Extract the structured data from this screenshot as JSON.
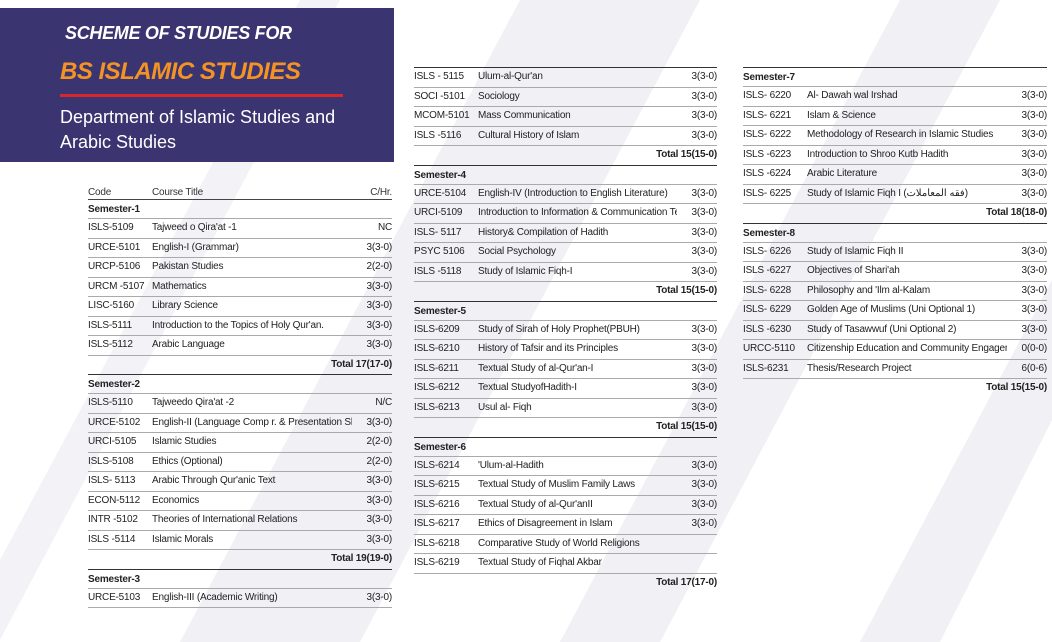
{
  "header": {
    "line1": "SCHEME OF STUDIES FOR",
    "line2": "BS ISLAMIC STUDIES",
    "line3": "Department of Islamic Studies and Arabic Studies"
  },
  "table_header": [
    "Code",
    "Course Title",
    "C/Hr."
  ],
  "columns": [
    {
      "blocks": [
        {
          "title": "Semester-1",
          "rows": [
            {
              "code": "ISLS-5109",
              "title": "Tajweed o Qira'at -1",
              "hr": "NC"
            },
            {
              "code": "URCE-5101",
              "title": "English-I (Grammar)",
              "hr": "3(3-0)"
            },
            {
              "code": "URCP-5106",
              "title": "Pakistan Studies",
              "hr": "2(2-0)"
            },
            {
              "code": "URCM -5107",
              "title": "Mathematics",
              "hr": "3(3-0)"
            },
            {
              "code": "LISC-5160",
              "title": "Library Science",
              "hr": "3(3-0)"
            },
            {
              "code": "ISLS-5111",
              "title": "Introduction to the Topics of Holy Qur'an.",
              "hr": "3(3-0)"
            },
            {
              "code": "ISLS-5112",
              "title": "Arabic Language",
              "hr": "3(3-0)"
            }
          ],
          "total": "Total 17(17-0)"
        },
        {
          "title": "Semester-2",
          "rows": [
            {
              "code": "ISLS-5110",
              "title": "Tajweedo Qira'at -2",
              "hr": "N/C"
            },
            {
              "code": "URCE-5102",
              "title": "English-II (Language Comp r. & Presentation Skills)",
              "hr": "3(3-0)"
            },
            {
              "code": "URCI-5105",
              "title": "Islamic Studies",
              "hr": "2(2-0)"
            },
            {
              "code": "ISLS-5108",
              "title": "Ethics (Optional)",
              "hr": "2(2-0)"
            },
            {
              "code": "ISLS- 5113",
              "title": "Arabic Through Qur'anic Text",
              "hr": "3(3-0)"
            },
            {
              "code": "ECON-5112",
              "title": "Economics",
              "hr": "3(3-0)"
            },
            {
              "code": "INTR -5102",
              "title": "Theories of International Relations",
              "hr": "3(3-0)"
            },
            {
              "code": "ISLS -5114",
              "title": "Islamic Morals",
              "hr": "3(3-0)"
            }
          ],
          "total": "Total 19(19-0)"
        },
        {
          "title": "Semester-3",
          "rows": [
            {
              "code": "URCE-5103",
              "title": "English-III (Academic Writing)",
              "hr": "3(3-0)"
            }
          ]
        }
      ]
    },
    {
      "blocks": [
        {
          "rows": [
            {
              "code": "ISLS - 5115",
              "title": "Ulum-al-Qur'an",
              "hr": "3(3-0)"
            },
            {
              "code": "SOCI -5101",
              "title": "Sociology",
              "hr": "3(3-0)"
            },
            {
              "code": "MCOM-5101",
              "title": "Mass Communication",
              "hr": "3(3-0)"
            },
            {
              "code": "ISLS -5116",
              "title": "Cultural History of Islam",
              "hr": "3(3-0)"
            }
          ],
          "total": "Total 15(15-0)"
        },
        {
          "title": "Semester-4",
          "rows": [
            {
              "code": "URCE-5104",
              "title": "English-IV (Introduction to English Literature)",
              "hr": "3(3-0)"
            },
            {
              "code": "URCI-5109",
              "title": "Introduction to Information & Communication Tech.",
              "hr": "3(3-0)"
            },
            {
              "code": "ISLS- 5117",
              "title": "History& Compilation of Hadith",
              "hr": "3(3-0)"
            },
            {
              "code": "PSYC 5106",
              "title": "Social Psychology",
              "hr": "3(3-0)"
            },
            {
              "code": "ISLS -5118",
              "title": "Study of Islamic Fiqh-I",
              "hr": "3(3-0)"
            }
          ],
          "total": "Total 15(15-0)"
        },
        {
          "title": "Semester-5",
          "rows": [
            {
              "code": "ISLS-6209",
              "title": "Study of Sirah of Holy Prophet(PBUH)",
              "hr": "3(3-0)"
            },
            {
              "code": "ISLS-6210",
              "title": "History of Tafsir and its Principles",
              "hr": "3(3-0)"
            },
            {
              "code": "ISLS-6211",
              "title": "Textual Study of al-Qur'an-I",
              "hr": "3(3-0)"
            },
            {
              "code": "ISLS-6212",
              "title": "Textual StudyofHadith-I",
              "hr": "3(3-0)"
            },
            {
              "code": "ISLS-6213",
              "title": "Usul al- Fiqh",
              "hr": "3(3-0)"
            }
          ],
          "total": "Total 15(15-0)"
        },
        {
          "title": "Semester-6",
          "rows": [
            {
              "code": "ISLS-6214",
              "title": "'Ulum-al-Hadith",
              "hr": "3(3-0)"
            },
            {
              "code": "ISLS-6215",
              "title": "Textual Study of Muslim Family Laws",
              "hr": "3(3-0)"
            },
            {
              "code": "ISLS-6216",
              "title": "Textual Study of al-Qur'anII",
              "hr": "3(3-0)"
            },
            {
              "code": "ISLS-6217",
              "title": "Ethics of Disagreement in Islam",
              "hr": "3(3-0)"
            },
            {
              "code": "ISLS-6218",
              "title": "Comparative Study of World Religions"
            },
            {
              "code": "ISLS-6219",
              "title": "Textual Study of Fiqhal Akbar"
            }
          ],
          "total": "Total 17(17-0)"
        }
      ]
    },
    {
      "blocks": [
        {
          "title": "Semester-7",
          "rows": [
            {
              "code": "ISLS- 6220",
              "title": "Al- Dawah wal Irshad",
              "hr": "3(3-0)"
            },
            {
              "code": "ISLS- 6221",
              "title": "Islam & Science",
              "hr": "3(3-0)"
            },
            {
              "code": "ISLS- 6222",
              "title": "Methodology of Research in Islamic Studies",
              "hr": "3(3-0)"
            },
            {
              "code": "ISLS -6223",
              "title": "Introduction to Shroo Kutb Hadith",
              "hr": "3(3-0)"
            },
            {
              "code": "ISLS -6224",
              "title": "Arabic Literature",
              "hr": "3(3-0)"
            },
            {
              "code": "ISLS- 6225",
              "title": "Study of Islamic Fiqh I (فقه المعاملات)",
              "hr": "3(3-0)"
            }
          ],
          "total": "Total 18(18-0)"
        },
        {
          "title": "Semester-8",
          "rows": [
            {
              "code": "ISLS- 6226",
              "title": "Study of Islamic Fiqh II",
              "hr": "3(3-0)"
            },
            {
              "code": "ISLS -6227",
              "title": "Objectives of Shari'ah",
              "hr": "3(3-0)"
            },
            {
              "code": "ISLS- 6228",
              "title": "Philosophy and 'Ilm al-Kalam",
              "hr": "3(3-0)"
            },
            {
              "code": "ISLS- 6229",
              "title": "Golden Age of Muslims (Uni Optional 1)",
              "hr": "3(3-0)"
            },
            {
              "code": "ISLS -6230",
              "title": "Study of Tasawwuf (Uni Optional 2)",
              "hr": "3(3-0)"
            },
            {
              "code": "URCC-5110",
              "title": "Citizenship Education and Community Engagement",
              "hr": "0(0-0)"
            },
            {
              "code": "ISLS-6231",
              "title": "Thesis/Research Project",
              "hr": "6(0-6)"
            }
          ],
          "total": "Total 15(15-0)"
        }
      ]
    }
  ]
}
